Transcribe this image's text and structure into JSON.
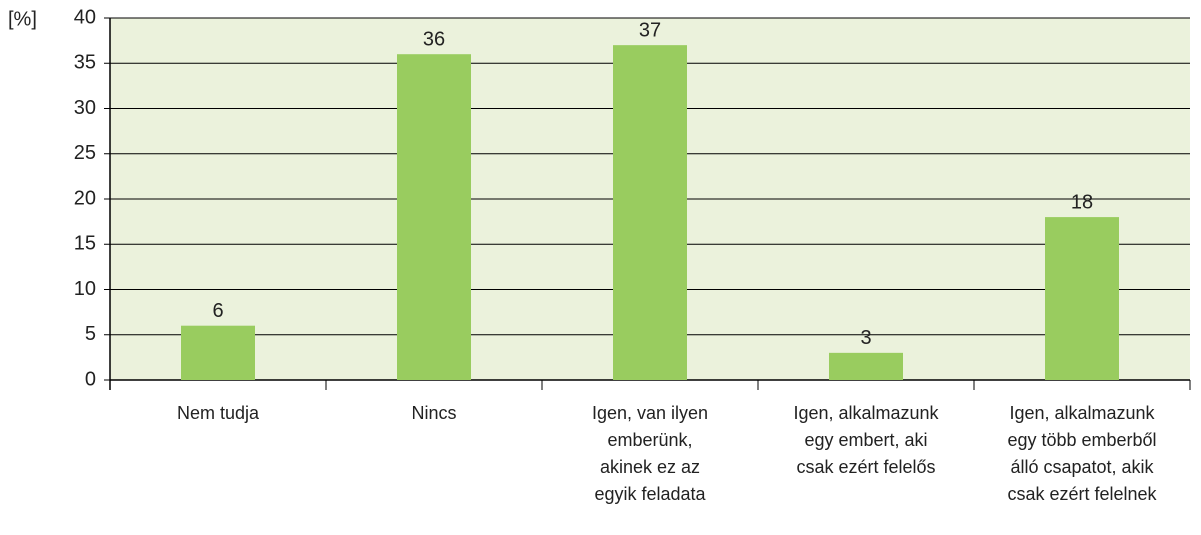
{
  "chart_data": {
    "type": "bar",
    "y_label": "[%]",
    "categories": [
      "Nem tudja",
      "Nincs",
      "Igen, van ilyen\nemberünk,\nakinek ez az\negyik feladata",
      "Igen, alkalmazunk\negy embert, aki\ncsak ezért felelős",
      "Igen, alkalmazunk\negy több emberből\nálló csapatot, akik\ncsak ezért felelnek"
    ],
    "values": [
      6,
      36,
      37,
      3,
      18
    ],
    "color": "#99cc5f",
    "ylim": [
      0,
      40
    ],
    "yticks": [
      0,
      5,
      10,
      15,
      20,
      25,
      30,
      35,
      40
    ],
    "grid": true
  }
}
